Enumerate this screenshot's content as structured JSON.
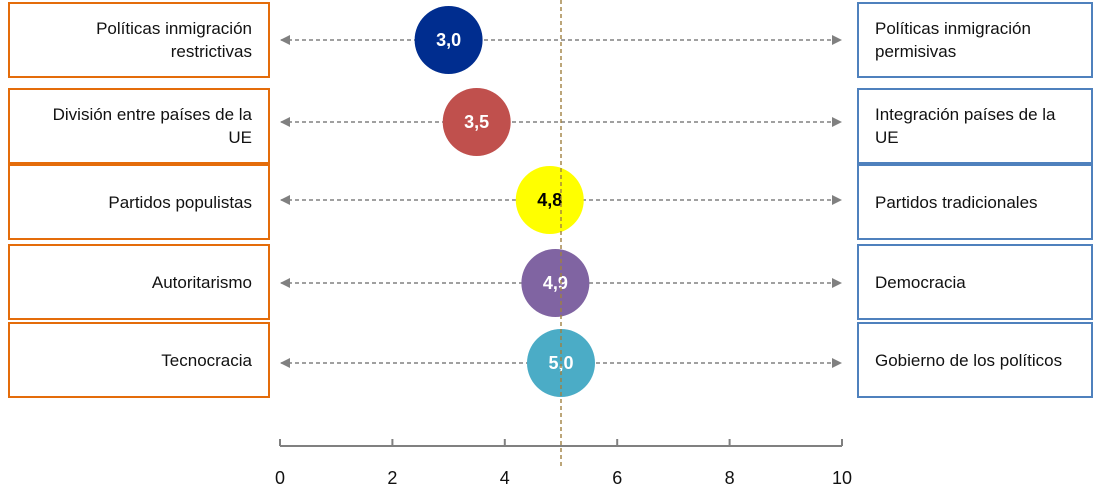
{
  "chart_data": {
    "type": "scatter",
    "title": "",
    "xlabel": "",
    "ylabel": "",
    "xlim": [
      0,
      10
    ],
    "xticks": [
      "0",
      "2",
      "4",
      "6",
      "8",
      "10"
    ],
    "reference_line": 5,
    "grid": false,
    "rows": [
      {
        "left": "Políticas inmigración restrictivas",
        "right": "Políticas inmigración permisivas",
        "value": 3.0,
        "label": "3,0",
        "color": "#002d8f",
        "text_color": "#ffffff"
      },
      {
        "left": "División entre países de la UE",
        "right": "Integración países de la UE",
        "value": 3.5,
        "label": "3,5",
        "color": "#c0504d",
        "text_color": "#ffffff"
      },
      {
        "left": "Partidos populistas",
        "right": "Partidos tradicionales",
        "value": 4.8,
        "label": "4,8",
        "color": "#ffff00",
        "text_color": "#000000"
      },
      {
        "left": "Autoritarismo",
        "right": "Democracia",
        "value": 4.9,
        "label": "4,9",
        "color": "#8064a2",
        "text_color": "#ffffff"
      },
      {
        "left": "Tecnocracia",
        "right": "Gobierno de los políticos",
        "value": 5.0,
        "label": "5,0",
        "color": "#4bacc6",
        "text_color": "#ffffff"
      }
    ]
  },
  "colors": {
    "left_border": "#e46c0a",
    "right_border": "#4f81bd",
    "arrow": "#808080",
    "reference_line": "#a08040",
    "axis": "#808080"
  }
}
